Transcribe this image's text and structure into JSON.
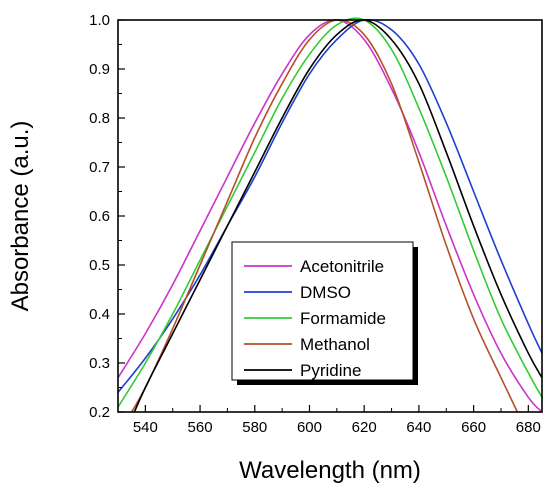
{
  "chart_data": {
    "type": "line",
    "title": "",
    "xlabel": "Wavelength (nm)",
    "ylabel": "Absorbance (a.u.)",
    "xlim": [
      530,
      685
    ],
    "ylim": [
      0.2,
      1.0
    ],
    "x_ticks": [
      540,
      560,
      580,
      600,
      620,
      640,
      660,
      680
    ],
    "y_ticks": [
      0.2,
      0.3,
      0.4,
      0.5,
      0.6,
      0.7,
      0.8,
      0.9,
      1.0
    ],
    "x_tick_labels": [
      "540",
      "560",
      "580",
      "600",
      "620",
      "640",
      "660",
      "680"
    ],
    "y_tick_labels": [
      "0.2",
      "0.3",
      "0.4",
      "0.5",
      "0.6",
      "0.7",
      "0.8",
      "0.9",
      "1.0"
    ],
    "grid": false,
    "legend_position": "lower-center",
    "series": [
      {
        "name": "Acetonitrile",
        "color": "#cc33cc",
        "x": [
          530,
          540,
          550,
          560,
          570,
          580,
          590,
          600,
          610,
          620,
          630,
          640,
          650,
          660,
          670,
          680,
          685
        ],
        "y": [
          0.27,
          0.36,
          0.46,
          0.57,
          0.68,
          0.79,
          0.89,
          0.97,
          1.0,
          0.96,
          0.86,
          0.73,
          0.58,
          0.44,
          0.32,
          0.23,
          0.2
        ]
      },
      {
        "name": "DMSO",
        "color": "#1f3fcf",
        "x": [
          530,
          540,
          550,
          560,
          570,
          580,
          590,
          600,
          610,
          620,
          630,
          640,
          650,
          660,
          670,
          680,
          685
        ],
        "y": [
          0.24,
          0.31,
          0.39,
          0.48,
          0.58,
          0.68,
          0.79,
          0.89,
          0.96,
          1.0,
          0.98,
          0.91,
          0.79,
          0.65,
          0.51,
          0.38,
          0.32
        ]
      },
      {
        "name": "Formamide",
        "color": "#33cc33",
        "x": [
          530,
          540,
          550,
          560,
          570,
          580,
          590,
          600,
          610,
          620,
          630,
          640,
          650,
          660,
          670,
          680,
          685
        ],
        "y": [
          0.21,
          0.3,
          0.4,
          0.51,
          0.62,
          0.73,
          0.84,
          0.93,
          0.99,
          1.0,
          0.94,
          0.82,
          0.68,
          0.53,
          0.39,
          0.28,
          0.23
        ]
      },
      {
        "name": "Methanol",
        "color": "#b5502a",
        "x": [
          535,
          540,
          550,
          560,
          570,
          580,
          590,
          600,
          610,
          620,
          630,
          640,
          650,
          660,
          670,
          676
        ],
        "y": [
          0.2,
          0.25,
          0.37,
          0.5,
          0.63,
          0.76,
          0.87,
          0.96,
          1.0,
          0.97,
          0.87,
          0.71,
          0.54,
          0.39,
          0.27,
          0.2
        ]
      },
      {
        "name": "Pyridine",
        "color": "#000000",
        "x": [
          536,
          540,
          550,
          560,
          570,
          580,
          590,
          600,
          610,
          620,
          630,
          640,
          650,
          660,
          670,
          680,
          685
        ],
        "y": [
          0.2,
          0.25,
          0.36,
          0.47,
          0.58,
          0.69,
          0.8,
          0.9,
          0.97,
          1.0,
          0.96,
          0.87,
          0.73,
          0.58,
          0.44,
          0.32,
          0.27
        ]
      }
    ]
  }
}
